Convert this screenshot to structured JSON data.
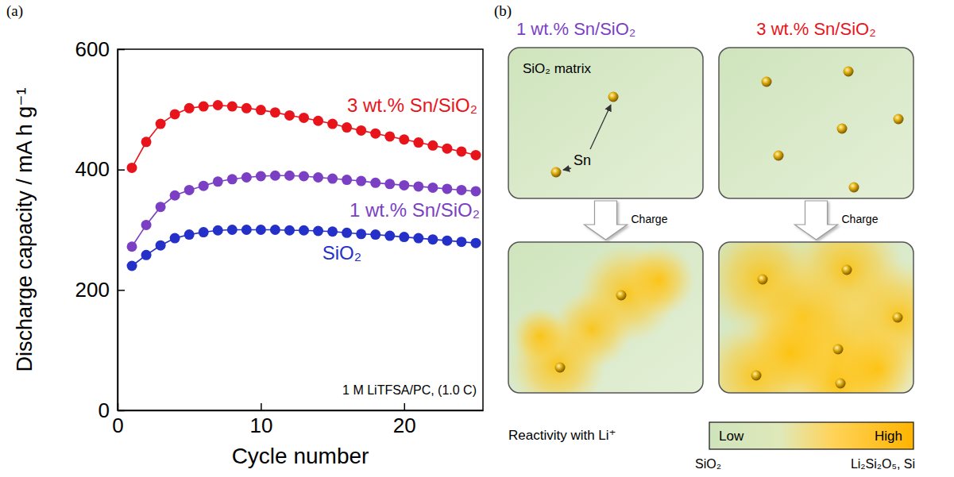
{
  "chart_data": {
    "type": "line",
    "label": "(a)",
    "xlabel": "Cycle number",
    "ylabel": "Discharge capacity / mA h g⁻¹",
    "x": [
      1,
      2,
      3,
      4,
      5,
      6,
      7,
      8,
      9,
      10,
      11,
      12,
      13,
      14,
      15,
      16,
      17,
      18,
      19,
      20,
      21,
      22,
      23,
      24,
      25
    ],
    "xlim": [
      0,
      25.5
    ],
    "xticks": [
      0,
      10,
      20
    ],
    "ylim": [
      0,
      600
    ],
    "yticks": [
      0,
      200,
      400,
      600
    ],
    "grid": false,
    "annotations": [
      {
        "text": "1 M LiTFSA/PC, (1.0 C)"
      }
    ],
    "series": [
      {
        "name": "3 wt.% Sn/SiO₂",
        "color": "#e8141c",
        "marker": "circle",
        "line_style": "solid",
        "values": [
          403,
          446,
          476,
          492,
          502,
          505,
          507,
          505,
          502,
          499,
          495,
          490,
          486,
          481,
          476,
          470,
          465,
          460,
          455,
          450,
          445,
          440,
          435,
          430,
          424
        ]
      },
      {
        "name": "1 wt.% Sn/SiO₂",
        "color": "#7b3fc4",
        "marker": "circle",
        "line_style": "solid",
        "values": [
          272,
          308,
          338,
          357,
          366,
          373,
          380,
          384,
          387,
          389,
          390,
          390,
          389,
          387,
          385,
          383,
          381,
          378,
          376,
          374,
          372,
          370,
          368,
          366,
          364
        ]
      },
      {
        "name": "SiO₂",
        "color": "#2430c8",
        "marker": "circle",
        "line_style": "solid",
        "values": [
          240,
          258,
          274,
          286,
          292,
          296,
          299,
          300,
          300,
          300,
          300,
          299,
          299,
          298,
          297,
          295,
          293,
          292,
          290,
          288,
          286,
          284,
          282,
          280,
          278
        ]
      }
    ]
  },
  "diagram": {
    "label": "(b)",
    "panels": [
      {
        "title": "1 wt.% Sn/SiO₂",
        "color": "#7b3fc4",
        "matrix_label": "SiO₂ matrix",
        "particle_label": "Sn",
        "arrow_label": "Charge"
      },
      {
        "title": "3 wt.% Sn/SiO₂",
        "color": "#e8141c",
        "arrow_label": "Charge"
      }
    ],
    "scale": {
      "title": "Reactivity with Li⁺",
      "low": "Low",
      "high": "High",
      "low_phase": "SiO₂",
      "high_phase": "Li₂Si₂O₅, Si"
    }
  }
}
